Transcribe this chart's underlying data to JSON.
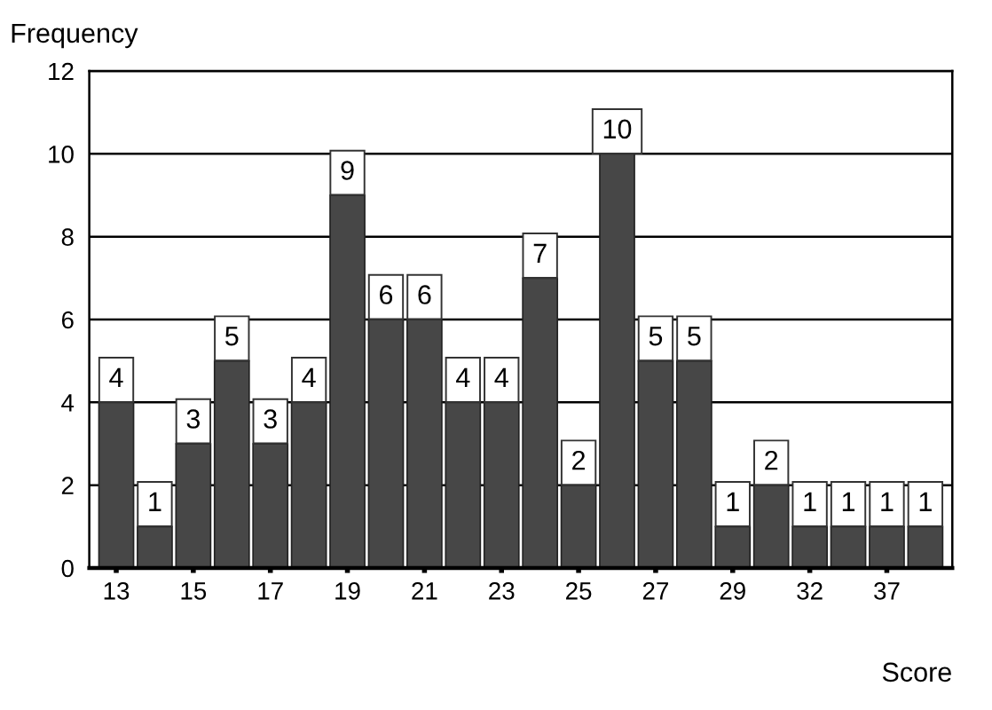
{
  "chart_data": {
    "type": "bar",
    "xlabel": "Score",
    "ylabel": "Frequency",
    "categories": [
      "13",
      null,
      "15",
      null,
      "17",
      null,
      "19",
      null,
      "21",
      null,
      "23",
      null,
      "25",
      null,
      "27",
      null,
      "29",
      null,
      "32",
      null,
      "37",
      null
    ],
    "values": [
      4,
      1,
      3,
      5,
      3,
      4,
      9,
      6,
      6,
      4,
      4,
      7,
      2,
      10,
      5,
      5,
      1,
      2,
      1,
      1,
      1,
      1
    ],
    "color": "#474747",
    "ylim": [
      0,
      12
    ],
    "yticks": [
      0,
      2,
      4,
      6,
      8,
      10,
      12
    ],
    "grid": "y",
    "data_labels": true
  }
}
